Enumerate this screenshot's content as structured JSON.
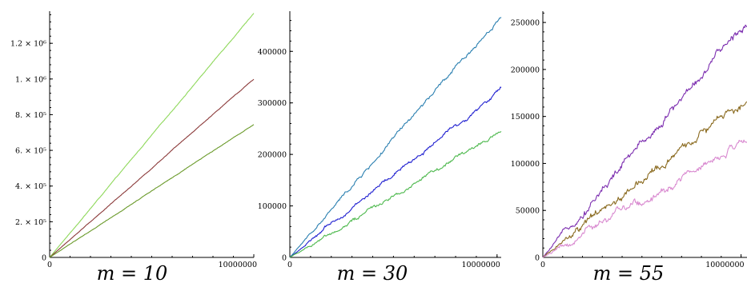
{
  "chart_data": [
    {
      "type": "line",
      "caption": "m = 10",
      "xlim": [
        0,
        10000000
      ],
      "ylim": [
        0,
        1380000
      ],
      "x_ticks": [
        {
          "value": 0,
          "label": "0"
        },
        {
          "value": 10000000,
          "label": "10000000"
        }
      ],
      "y_ticks": [
        {
          "value": 0,
          "label": "0"
        },
        {
          "value": 200000,
          "label": "2. × 10⁵"
        },
        {
          "value": 400000,
          "label": "4. × 10⁵"
        },
        {
          "value": 600000,
          "label": "6. × 10⁵"
        },
        {
          "value": 800000,
          "label": "8. × 10⁵"
        },
        {
          "value": 1000000,
          "label": "1. × 10⁶"
        },
        {
          "value": 1200000,
          "label": "1.2 × 10⁶"
        }
      ],
      "noise": 0.002,
      "series": [
        {
          "color": "#8ed85a",
          "x": [
            0,
            10000000
          ],
          "values": [
            0,
            1370000
          ]
        },
        {
          "color": "#8b3a3a",
          "x": [
            0,
            10000000
          ],
          "values": [
            0,
            1000000
          ]
        },
        {
          "color": "#6a9a2a",
          "x": [
            0,
            10000000
          ],
          "values": [
            0,
            745000
          ]
        }
      ]
    },
    {
      "type": "line",
      "caption": "m = 30",
      "xlim": [
        0,
        10200000
      ],
      "ylim": [
        0,
        478000
      ],
      "x_ticks": [
        {
          "value": 0,
          "label": "0"
        },
        {
          "value": 10000000,
          "label": "10000000"
        }
      ],
      "y_ticks": [
        {
          "value": 0,
          "label": "0"
        },
        {
          "value": 100000,
          "label": "100000"
        },
        {
          "value": 200000,
          "label": "200000"
        },
        {
          "value": 300000,
          "label": "300000"
        },
        {
          "value": 400000,
          "label": "400000"
        }
      ],
      "noise": 0.012,
      "series": [
        {
          "color": "#2a7fb0",
          "x": [
            0,
            10200000
          ],
          "values": [
            0,
            468000
          ]
        },
        {
          "color": "#1f1fd0",
          "x": [
            0,
            10200000
          ],
          "values": [
            0,
            325000
          ]
        },
        {
          "color": "#4cb84c",
          "x": [
            0,
            10200000
          ],
          "values": [
            0,
            245000
          ]
        }
      ]
    },
    {
      "type": "line",
      "caption": "m = 55",
      "xlim": [
        0,
        10300000
      ],
      "ylim": [
        0,
        262000
      ],
      "x_ticks": [
        {
          "value": 0,
          "label": "0"
        },
        {
          "value": 10000000,
          "label": "10000000"
        }
      ],
      "y_ticks": [
        {
          "value": 0,
          "label": "0"
        },
        {
          "value": 50000,
          "label": "50000"
        },
        {
          "value": 100000,
          "label": "100000"
        },
        {
          "value": 150000,
          "label": "150000"
        },
        {
          "value": 200000,
          "label": "200000"
        },
        {
          "value": 250000,
          "label": "250000"
        }
      ],
      "noise": 0.025,
      "series": [
        {
          "color": "#7d2fb0",
          "x": [
            0,
            10300000
          ],
          "values": [
            0,
            250000
          ]
        },
        {
          "color": "#8a6a1f",
          "x": [
            0,
            10300000
          ],
          "values": [
            0,
            168000
          ]
        },
        {
          "color": "#d98ad0",
          "x": [
            0,
            10300000
          ],
          "values": [
            0,
            127000
          ]
        }
      ]
    }
  ]
}
